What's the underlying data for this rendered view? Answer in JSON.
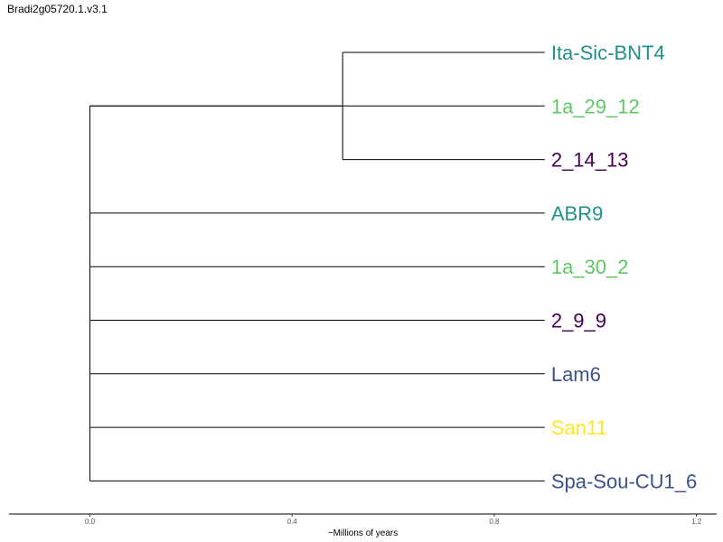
{
  "page": {
    "title": "Bradi2g05720.1.v3.1"
  },
  "chart_data": {
    "type": "dendrogram",
    "xlabel": "~Millions of years",
    "xlim": [
      -0.16,
      1.24
    ],
    "x_ticks": [
      0.0,
      0.4,
      0.8,
      1.2
    ],
    "x_tick_labels": [
      "0.0",
      "0.4",
      "0.8",
      "1.2"
    ],
    "leaf_x": 0.9,
    "leaves": [
      {
        "name": "Ita-Sic-BNT4",
        "color": "#21908d"
      },
      {
        "name": "1a_29_12",
        "color": "#5dc863"
      },
      {
        "name": "2_14_13",
        "color": "#440154"
      },
      {
        "name": "ABR9",
        "color": "#21908d"
      },
      {
        "name": "1a_30_2",
        "color": "#5dc863"
      },
      {
        "name": "2_9_9",
        "color": "#440154"
      },
      {
        "name": "Lam6",
        "color": "#3b528b"
      },
      {
        "name": "San11",
        "color": "#fde725"
      },
      {
        "name": "Spa-Sou-CU1_6",
        "color": "#3b528b"
      }
    ],
    "clades": [
      {
        "members": [
          "Ita-Sic-BNT4",
          "2_14_13"
        ],
        "node_x": 0.5
      }
    ],
    "root_x": 0.0
  }
}
